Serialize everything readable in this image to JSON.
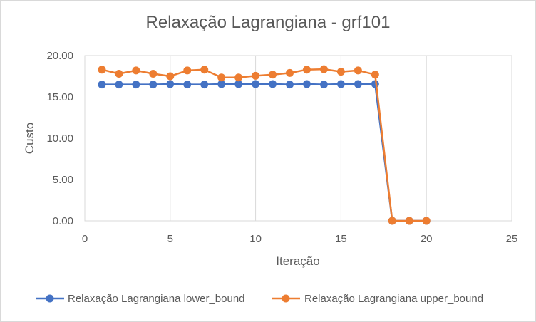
{
  "chart_data": {
    "type": "line",
    "title": "Relaxação Lagrangiana - grf101",
    "xlabel": "Iteração",
    "ylabel": "Custo",
    "xlim": [
      0,
      25
    ],
    "ylim": [
      0,
      20
    ],
    "x_ticks": [
      "0",
      "5",
      "10",
      "15",
      "20",
      "25"
    ],
    "y_ticks": [
      "0.00",
      "5.00",
      "10.00",
      "15.00",
      "20.00"
    ],
    "grid": "vertical",
    "legend_position": "bottom",
    "series": [
      {
        "name": "Relaxação Lagrangiana lower_bound",
        "color": "#4472c4",
        "x": [
          1,
          2,
          3,
          4,
          5,
          6,
          7,
          8,
          9,
          10,
          11,
          12,
          13,
          14,
          15,
          16,
          17,
          18,
          19,
          20
        ],
        "values": [
          16.5,
          16.5,
          16.5,
          16.5,
          16.55,
          16.5,
          16.5,
          16.55,
          16.55,
          16.55,
          16.55,
          16.5,
          16.55,
          16.5,
          16.55,
          16.55,
          16.55,
          0,
          0,
          0
        ]
      },
      {
        "name": "Relaxação Lagrangiana upper_bound",
        "color": "#ed7d31",
        "x": [
          1,
          2,
          3,
          4,
          5,
          6,
          7,
          8,
          9,
          10,
          11,
          12,
          13,
          14,
          15,
          16,
          17,
          18,
          19,
          20
        ],
        "values": [
          18.3,
          17.8,
          18.2,
          17.8,
          17.5,
          18.2,
          18.3,
          17.35,
          17.35,
          17.55,
          17.7,
          17.9,
          18.3,
          18.35,
          18.05,
          18.2,
          17.7,
          0,
          0,
          0
        ]
      }
    ]
  }
}
